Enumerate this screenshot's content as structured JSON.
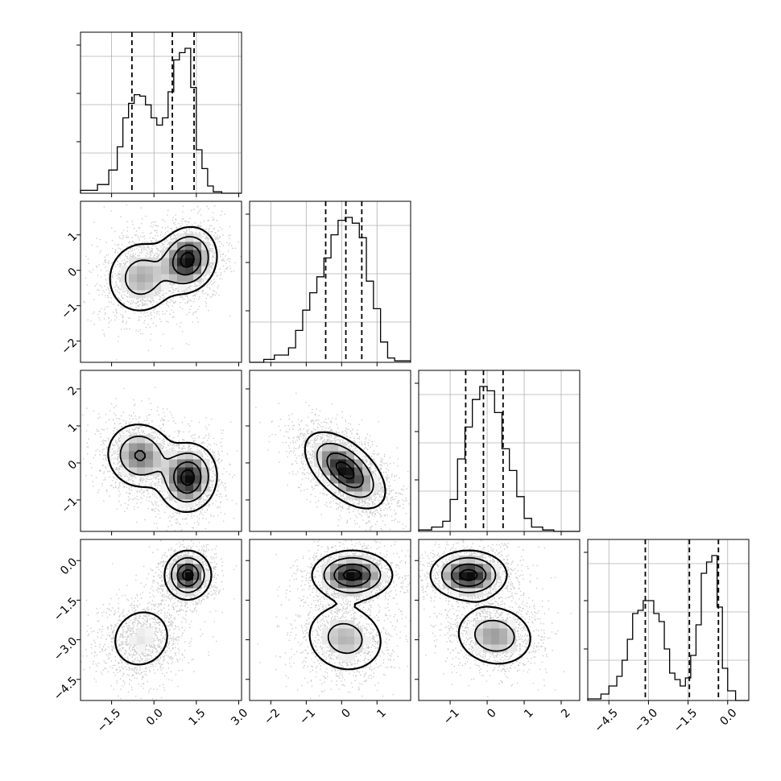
{
  "figure": {
    "type": "corner-plot"
  },
  "chart_data": {
    "type": "corner",
    "title": "",
    "grid": true,
    "variables": [
      {
        "index": 0,
        "range": [
          -2.6,
          3.1
        ],
        "ticks": [
          -1.5,
          0.0,
          1.5,
          3.0
        ],
        "tick_labels": [
          "−1.5",
          "0.0",
          "1.5",
          "3.0"
        ],
        "quantiles": [
          -0.78,
          0.65,
          1.42
        ]
      },
      {
        "index": 1,
        "range": [
          -2.6,
          1.95
        ],
        "ticks": [
          -2,
          -1,
          0,
          1
        ],
        "tick_labels": [
          "−2",
          "−1",
          "0",
          "1"
        ],
        "quantiles": [
          -0.45,
          0.12,
          0.57
        ]
      },
      {
        "index": 2,
        "range": [
          -1.85,
          2.5
        ],
        "ticks": [
          -1,
          0,
          1,
          2
        ],
        "tick_labels": [
          "−1",
          "0",
          "1",
          "2"
        ],
        "quantiles": [
          -0.58,
          -0.1,
          0.43
        ]
      },
      {
        "index": 3,
        "range": [
          -5.3,
          0.8
        ],
        "ticks": [
          -4.5,
          -3.0,
          -1.5,
          0.0
        ],
        "tick_labels": [
          "−4.5",
          "−3.0",
          "−1.5",
          "0.0"
        ],
        "quantiles": [
          -3.12,
          -1.45,
          -0.35
        ]
      }
    ],
    "histograms": [
      {
        "variable": 0,
        "edges": [
          -2.6,
          -2.0,
          -1.6,
          -1.3,
          -1.1,
          -0.9,
          -0.7,
          -0.5,
          -0.3,
          -0.1,
          0.1,
          0.3,
          0.5,
          0.7,
          0.9,
          1.1,
          1.3,
          1.5,
          1.7,
          1.9,
          2.1,
          2.4,
          3.1
        ],
        "counts": [
          0.02,
          0.06,
          0.16,
          0.32,
          0.52,
          0.62,
          0.68,
          0.67,
          0.61,
          0.52,
          0.47,
          0.52,
          0.7,
          0.92,
          0.97,
          1.0,
          0.73,
          0.3,
          0.17,
          0.05,
          0.01,
          0
        ]
      },
      {
        "variable": 1,
        "edges": [
          -2.6,
          -2.2,
          -1.9,
          -1.5,
          -1.3,
          -1.1,
          -0.9,
          -0.7,
          -0.5,
          -0.3,
          -0.1,
          0.1,
          0.3,
          0.5,
          0.7,
          0.9,
          1.1,
          1.3,
          1.5,
          1.95
        ],
        "counts": [
          0.0,
          0.02,
          0.05,
          0.1,
          0.22,
          0.36,
          0.48,
          0.59,
          0.72,
          0.88,
          0.98,
          1.0,
          0.96,
          0.86,
          0.56,
          0.37,
          0.14,
          0.03,
          0.01
        ]
      },
      {
        "variable": 2,
        "edges": [
          -1.85,
          -1.5,
          -1.2,
          -1.0,
          -0.8,
          -0.6,
          -0.4,
          -0.2,
          0.0,
          0.2,
          0.4,
          0.6,
          0.8,
          1.0,
          1.2,
          1.5,
          1.8,
          2.5
        ],
        "counts": [
          0.01,
          0.03,
          0.07,
          0.22,
          0.5,
          0.72,
          0.91,
          1.0,
          0.97,
          0.82,
          0.57,
          0.42,
          0.24,
          0.09,
          0.03,
          0.01,
          0
        ]
      },
      {
        "variable": 3,
        "edges": [
          -5.3,
          -4.8,
          -4.5,
          -4.2,
          -4.0,
          -3.8,
          -3.6,
          -3.4,
          -3.2,
          -3.0,
          -2.8,
          -2.6,
          -2.4,
          -2.2,
          -2.0,
          -1.8,
          -1.6,
          -1.4,
          -1.2,
          -1.0,
          -0.8,
          -0.6,
          -0.4,
          -0.2,
          0.0,
          0.3,
          0.8
        ],
        "counts": [
          0.01,
          0.04,
          0.09,
          0.15,
          0.25,
          0.38,
          0.54,
          0.56,
          0.62,
          0.62,
          0.54,
          0.49,
          0.32,
          0.17,
          0.13,
          0.09,
          0.14,
          0.28,
          0.47,
          0.79,
          0.86,
          0.9,
          0.58,
          0.2,
          0.06,
          0
        ]
      }
    ],
    "pairs": [
      {
        "x": 0,
        "y": 1,
        "modes": [
          {
            "cx": -0.45,
            "cy": -0.2,
            "sx": 0.65,
            "sy": 0.55,
            "rho": 0.05,
            "w": 0.45
          },
          {
            "cx": 1.2,
            "cy": 0.3,
            "sx": 0.5,
            "sy": 0.45,
            "rho": 0.1,
            "w": 0.55
          }
        ]
      },
      {
        "x": 0,
        "y": 2,
        "modes": [
          {
            "cx": -0.5,
            "cy": 0.2,
            "sx": 0.6,
            "sy": 0.45,
            "rho": -0.05,
            "w": 0.45
          },
          {
            "cx": 1.2,
            "cy": -0.4,
            "sx": 0.5,
            "sy": 0.45,
            "rho": 0.05,
            "w": 0.55
          }
        ]
      },
      {
        "x": 0,
        "y": 3,
        "modes": [
          {
            "cx": -0.45,
            "cy": -2.95,
            "sx": 0.65,
            "sy": 0.7,
            "rho": 0.1,
            "w": 0.45
          },
          {
            "cx": 1.2,
            "cy": -0.55,
            "sx": 0.4,
            "sy": 0.45,
            "rho": 0.0,
            "w": 0.55
          }
        ]
      },
      {
        "x": 1,
        "y": 2,
        "modes": [
          {
            "cx": 0.1,
            "cy": -0.2,
            "sx": 0.55,
            "sy": 0.5,
            "rho": -0.55,
            "w": 1.0
          }
        ]
      },
      {
        "x": 1,
        "y": 3,
        "modes": [
          {
            "cx": 0.1,
            "cy": -2.95,
            "sx": 0.6,
            "sy": 0.7,
            "rho": -0.1,
            "w": 0.45
          },
          {
            "cx": 0.3,
            "cy": -0.55,
            "sx": 0.55,
            "sy": 0.45,
            "rho": 0.0,
            "w": 0.55
          }
        ]
      },
      {
        "x": 2,
        "y": 3,
        "modes": [
          {
            "cx": 0.2,
            "cy": -2.85,
            "sx": 0.55,
            "sy": 0.6,
            "rho": -0.1,
            "w": 0.45
          },
          {
            "cx": -0.5,
            "cy": -0.55,
            "sx": 0.5,
            "sy": 0.45,
            "rho": 0.0,
            "w": 0.55
          }
        ]
      }
    ],
    "colors": {
      "line": "#000000",
      "grid": "#b0b0b0",
      "points": "#333333",
      "frame": "#000000"
    }
  }
}
